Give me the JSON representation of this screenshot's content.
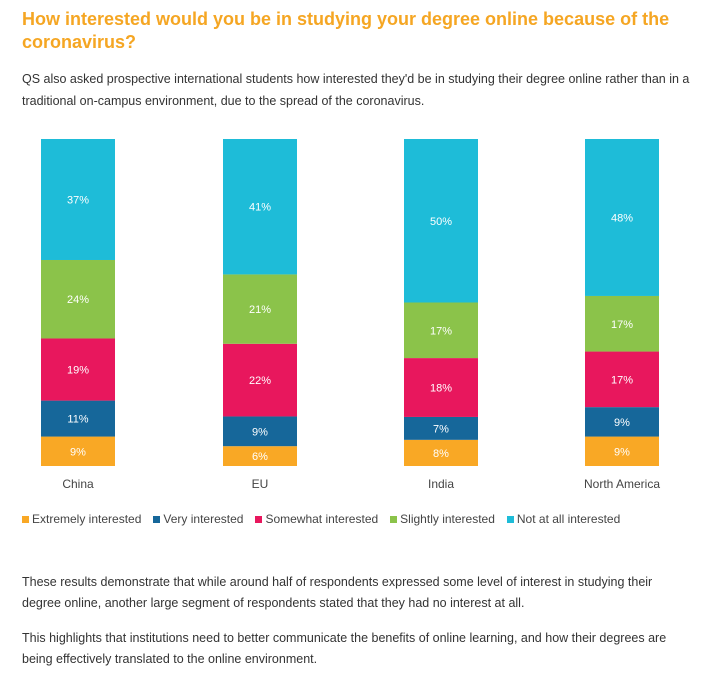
{
  "title": "How interested would you be in studying your degree online because of the coronavirus?",
  "intro": "QS also asked prospective international students how interested they'd be in studying their degree online rather than in a traditional on-campus environment, due to the spread of the coronavirus.",
  "chart_data": {
    "type": "bar",
    "stacked": true,
    "categories": [
      "China",
      "EU",
      "India",
      "North America"
    ],
    "series": [
      {
        "name": "Extremely interested",
        "color": "#f9a825",
        "values": [
          9,
          6,
          8,
          9
        ]
      },
      {
        "name": "Very interested",
        "color": "#16679a",
        "values": [
          11,
          9,
          7,
          9
        ]
      },
      {
        "name": "Somewhat interested",
        "color": "#e8175d",
        "values": [
          19,
          22,
          18,
          17
        ]
      },
      {
        "name": "Slightly interested",
        "color": "#8bc34a",
        "values": [
          24,
          21,
          17,
          17
        ]
      },
      {
        "name": "Not at all interested",
        "color": "#1ebcd8",
        "values": [
          37,
          41,
          50,
          48
        ]
      }
    ],
    "value_labels": [
      [
        "9%",
        "6%",
        "8%",
        "9%"
      ],
      [
        "11%",
        "9%",
        "7%",
        "9%"
      ],
      [
        "19%",
        "22%",
        "18%",
        "17%"
      ],
      [
        "24%",
        "21%",
        "17%",
        "17%"
      ],
      [
        "37%",
        "41%",
        "50%",
        "48%"
      ]
    ],
    "ylim": [
      0,
      100
    ],
    "legend_position": "bottom"
  },
  "legend": [
    {
      "label": "Extremely interested",
      "color": "#f9a825"
    },
    {
      "label": "Very interested",
      "color": "#16679a"
    },
    {
      "label": "Somewhat interested",
      "color": "#e8175d"
    },
    {
      "label": "Slightly interested",
      "color": "#8bc34a"
    },
    {
      "label": "Not at all interested",
      "color": "#1ebcd8"
    }
  ],
  "paragraph1": "These results demonstrate that while around half of respondents expressed some level of interest in studying their degree online, another large segment of respondents stated that they had no interest at all.",
  "paragraph2": "This highlights that institutions need to better communicate the benefits of online learning, and how their degrees are being effectively translated to the online environment."
}
